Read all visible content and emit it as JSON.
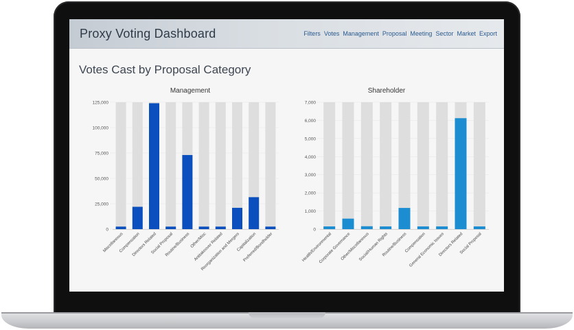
{
  "header": {
    "title": "Proxy Voting Dashboard",
    "nav": [
      "Filters",
      "Votes",
      "Management",
      "Proposal",
      "Meeting",
      "Sector",
      "Market",
      "Export"
    ]
  },
  "page": {
    "title": "Votes Cast by Proposal Category"
  },
  "chart_data": [
    {
      "type": "bar",
      "title": "Management",
      "color": "#0a4fbd",
      "track_color": "#dedede",
      "categories": [
        "Miscellaneous",
        "Compensation",
        "Directors Related",
        "Social Proposal",
        "Routine/Business",
        "Other/Misc",
        "Antitakeover Related",
        "Reorganization and Mergers",
        "Capitalization",
        "Preferred/Bondholder"
      ],
      "values": [
        2500,
        22000,
        124000,
        2500,
        73000,
        2500,
        2500,
        21000,
        31500,
        2500
      ],
      "ylim": [
        0,
        125000
      ],
      "yticks": [
        "0",
        "25,000",
        "50,000",
        "75,000",
        "100,000",
        "125,000"
      ],
      "ytick_values": [
        0,
        25000,
        50000,
        75000,
        100000,
        125000
      ]
    },
    {
      "type": "bar",
      "title": "Shareholder",
      "color": "#1c8dd1",
      "track_color": "#dedede",
      "categories": [
        "Health/Environmental",
        "Corporate Governance",
        "Other/Miscellaneous",
        "Social/Human Rights",
        "Routine/Business",
        "Compensation",
        "General Economic Issues",
        "Directors Related",
        "Social Proposal"
      ],
      "values": [
        150,
        580,
        160,
        150,
        1170,
        150,
        150,
        6120,
        150
      ],
      "ylim": [
        0,
        7000
      ],
      "yticks": [
        "0",
        "1,000",
        "2,000",
        "3,000",
        "4,000",
        "5,000",
        "6,000",
        "7,000"
      ],
      "ytick_values": [
        0,
        1000,
        2000,
        3000,
        4000,
        5000,
        6000,
        7000
      ]
    }
  ]
}
